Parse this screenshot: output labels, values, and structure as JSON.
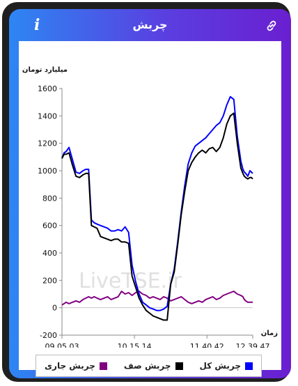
{
  "header": {
    "title": "چربش",
    "info_icon": "info-icon",
    "link_icon": "link-icon"
  },
  "watermark": "LiveTSE.ir",
  "legend": [
    {
      "label": "چربش کل",
      "color": "#0000ff"
    },
    {
      "label": "چربش صف",
      "color": "#000000"
    },
    {
      "label": "چربش جاری",
      "color": "#800080"
    }
  ],
  "chart_data": {
    "type": "line",
    "ylabel": "میلیارد تومان",
    "xlabel": "زمان",
    "ylim": [
      -200,
      1600
    ],
    "yticks": [
      -200,
      0,
      200,
      400,
      600,
      800,
      1000,
      1200,
      1400,
      1600
    ],
    "xtick_labels": [
      "09.05.03",
      "10.15.14",
      "11.40.42",
      "12.39.47"
    ],
    "x": [
      0,
      3,
      6,
      10,
      15,
      20,
      25,
      30,
      34,
      38,
      42,
      46,
      50,
      55,
      60,
      65,
      70,
      75,
      80,
      85,
      90,
      95,
      100,
      105,
      110,
      115,
      120,
      125,
      130,
      135,
      140,
      145,
      150,
      155,
      160,
      165,
      170,
      175,
      180,
      185,
      190,
      195,
      200,
      205,
      210,
      215,
      220,
      225,
      230,
      235,
      240,
      245,
      250,
      255,
      258,
      260,
      262,
      265,
      268,
      270,
      272
    ],
    "series": [
      {
        "name": "چربش کل",
        "color": "#0000ff",
        "values": [
          1090,
          1130,
          1140,
          1170,
          1080,
          990,
          980,
          1000,
          1010,
          1010,
          640,
          620,
          610,
          600,
          590,
          580,
          560,
          560,
          570,
          560,
          590,
          550,
          310,
          190,
          100,
          40,
          20,
          0,
          -10,
          -20,
          -20,
          -10,
          10,
          170,
          280,
          480,
          700,
          890,
          1050,
          1130,
          1180,
          1200,
          1220,
          1240,
          1270,
          1300,
          1330,
          1350,
          1400,
          1480,
          1540,
          1520,
          1250,
          1070,
          1010,
          990,
          980,
          960,
          1000,
          990,
          980
        ]
      },
      {
        "name": "چربش صف",
        "color": "#000000",
        "values": [
          1090,
          1120,
          1120,
          1130,
          1040,
          960,
          950,
          970,
          980,
          980,
          600,
          590,
          580,
          520,
          510,
          500,
          490,
          500,
          500,
          480,
          480,
          470,
          230,
          150,
          70,
          20,
          -20,
          -40,
          -60,
          -70,
          -80,
          -90,
          -90,
          170,
          260,
          460,
          680,
          850,
          1000,
          1060,
          1100,
          1130,
          1150,
          1130,
          1160,
          1170,
          1140,
          1170,
          1240,
          1340,
          1400,
          1420,
          1200,
          1020,
          980,
          960,
          950,
          940,
          950,
          950,
          940
        ]
      },
      {
        "name": "چربش جاری",
        "color": "#800080",
        "values": [
          20,
          30,
          40,
          30,
          40,
          50,
          40,
          60,
          70,
          80,
          70,
          80,
          70,
          60,
          70,
          80,
          60,
          70,
          80,
          120,
          100,
          110,
          90,
          110,
          120,
          100,
          90,
          70,
          80,
          70,
          60,
          80,
          70,
          50,
          60,
          70,
          80,
          60,
          40,
          30,
          40,
          50,
          40,
          60,
          70,
          80,
          60,
          70,
          90,
          100,
          110,
          120,
          100,
          90,
          80,
          60,
          50,
          40,
          40,
          40,
          40
        ]
      }
    ]
  }
}
